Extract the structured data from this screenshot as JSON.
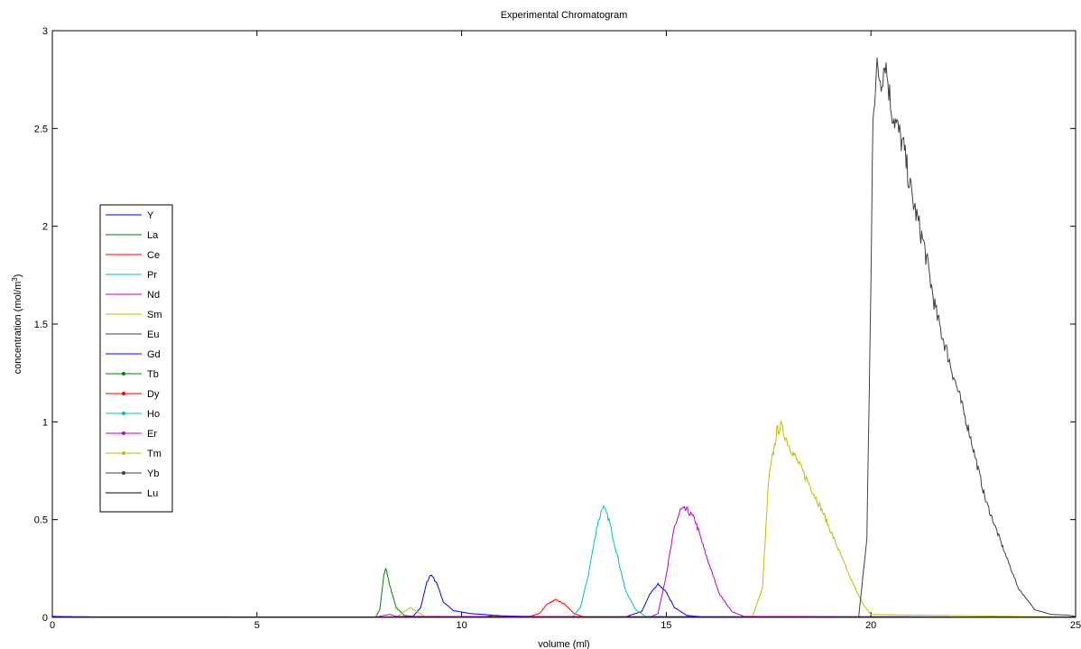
{
  "chart_data": {
    "type": "line",
    "title": "Experimental Chromatogram",
    "xlabel": "volume (ml)",
    "ylabel": "concentration (mol/m",
    "ylabel_superscript": "3",
    "ylabel_suffix": ")",
    "xlim": [
      0,
      25
    ],
    "ylim": [
      0,
      3
    ],
    "x_ticks": [
      0,
      5,
      10,
      15,
      20,
      25
    ],
    "y_ticks": [
      0,
      0.5,
      1,
      1.5,
      2,
      2.5,
      3
    ],
    "x_tick_labels": [
      "0",
      "5",
      "10",
      "15",
      "20",
      "25"
    ],
    "y_tick_labels": [
      "0",
      "0.5",
      "1",
      "1.5",
      "2",
      "2.5",
      "3"
    ],
    "grid": false,
    "legend_position": "left",
    "series": [
      {
        "name": "Y",
        "color": "#0000ff",
        "marker": false,
        "points": [
          [
            0,
            0.005
          ],
          [
            0.9,
            0.003
          ],
          [
            8.4,
            0.002
          ],
          [
            8.8,
            0.003
          ],
          [
            9.0,
            0.05
          ],
          [
            9.15,
            0.18
          ],
          [
            9.25,
            0.22
          ],
          [
            9.4,
            0.17
          ],
          [
            9.55,
            0.08
          ],
          [
            9.8,
            0.035
          ],
          [
            10.2,
            0.02
          ],
          [
            11,
            0.008
          ],
          [
            12,
            0.004
          ],
          [
            14.0,
            0.003
          ],
          [
            14.4,
            0.03
          ],
          [
            14.6,
            0.12
          ],
          [
            14.8,
            0.17
          ],
          [
            15.0,
            0.13
          ],
          [
            15.2,
            0.05
          ],
          [
            15.5,
            0.01
          ],
          [
            16,
            0.002
          ],
          [
            25,
            0.002
          ]
        ]
      },
      {
        "name": "La",
        "color": "#008000",
        "marker": false,
        "points": [
          [
            0,
            0.002
          ],
          [
            7.9,
            0.002
          ],
          [
            8.0,
            0.04
          ],
          [
            8.1,
            0.22
          ],
          [
            8.15,
            0.25
          ],
          [
            8.25,
            0.16
          ],
          [
            8.4,
            0.05
          ],
          [
            8.6,
            0.01
          ],
          [
            9,
            0.002
          ],
          [
            10.6,
            0.004
          ],
          [
            10.8,
            0.012
          ],
          [
            11.0,
            0.004
          ],
          [
            25,
            0.002
          ]
        ]
      },
      {
        "name": "Ce",
        "color": "#ff0000",
        "marker": false,
        "points": [
          [
            0,
            0.001
          ],
          [
            11.6,
            0.001
          ],
          [
            11.9,
            0.02
          ],
          [
            12.1,
            0.07
          ],
          [
            12.3,
            0.09
          ],
          [
            12.5,
            0.07
          ],
          [
            12.75,
            0.02
          ],
          [
            13.0,
            0.002
          ],
          [
            25,
            0.001
          ]
        ]
      },
      {
        "name": "Pr",
        "color": "#00bfbf",
        "marker": false,
        "points": [
          [
            0,
            0.001
          ],
          [
            12.7,
            0.001
          ],
          [
            12.9,
            0.05
          ],
          [
            13.1,
            0.22
          ],
          [
            13.3,
            0.46
          ],
          [
            13.45,
            0.57
          ],
          [
            13.6,
            0.5
          ],
          [
            13.8,
            0.32
          ],
          [
            14.0,
            0.14
          ],
          [
            14.25,
            0.04
          ],
          [
            14.5,
            0.005
          ],
          [
            25,
            0.001
          ]
        ]
      },
      {
        "name": "Nd",
        "color": "#bf00bf",
        "marker": false,
        "points": [
          [
            0,
            0.001
          ],
          [
            14.6,
            0.001
          ],
          [
            14.8,
            0.02
          ],
          [
            15.0,
            0.22
          ],
          [
            15.2,
            0.46
          ],
          [
            15.35,
            0.55
          ],
          [
            15.5,
            0.55
          ],
          [
            15.7,
            0.5
          ],
          [
            16.0,
            0.3
          ],
          [
            16.3,
            0.12
          ],
          [
            16.6,
            0.03
          ],
          [
            16.9,
            0.005
          ],
          [
            25,
            0.001
          ]
        ]
      },
      {
        "name": "Sm",
        "color": "#bfbf00",
        "marker": false,
        "points": [
          [
            0,
            0.001
          ],
          [
            8.4,
            0.001
          ],
          [
            8.6,
            0.03
          ],
          [
            8.75,
            0.05
          ],
          [
            8.9,
            0.03
          ],
          [
            9.1,
            0.005
          ],
          [
            17.1,
            0.002
          ],
          [
            17.35,
            0.15
          ],
          [
            17.5,
            0.7
          ],
          [
            17.7,
            0.95
          ],
          [
            17.8,
            0.98
          ],
          [
            18.0,
            0.88
          ],
          [
            18.4,
            0.72
          ],
          [
            18.8,
            0.55
          ],
          [
            19.2,
            0.35
          ],
          [
            19.5,
            0.2
          ],
          [
            19.8,
            0.07
          ],
          [
            20.0,
            0.015
          ],
          [
            25,
            0.001
          ]
        ]
      },
      {
        "name": "Eu",
        "color": "#404040",
        "marker": false,
        "points": [
          [
            0,
            0.001
          ],
          [
            19.7,
            0.002
          ],
          [
            19.9,
            0.4
          ],
          [
            20.0,
            1.7
          ],
          [
            20.05,
            2.6
          ],
          [
            20.15,
            2.8
          ],
          [
            20.25,
            2.75
          ],
          [
            20.35,
            2.85
          ],
          [
            20.5,
            2.6
          ],
          [
            20.8,
            2.4
          ],
          [
            21.0,
            2.15
          ],
          [
            21.3,
            1.9
          ],
          [
            21.6,
            1.55
          ],
          [
            22.0,
            1.25
          ],
          [
            22.4,
            0.95
          ],
          [
            22.8,
            0.6
          ],
          [
            23.2,
            0.37
          ],
          [
            23.6,
            0.15
          ],
          [
            24.0,
            0.04
          ],
          [
            24.4,
            0.015
          ],
          [
            24.8,
            0.012
          ],
          [
            25,
            0.005
          ]
        ]
      },
      {
        "name": "Gd",
        "color": "#0000ff",
        "marker": false,
        "points": [
          [
            0,
            0.001
          ],
          [
            25,
            0.001
          ]
        ]
      },
      {
        "name": "Tb",
        "color": "#008000",
        "marker": true,
        "points": [
          [
            0,
            0.001
          ],
          [
            25,
            0.001
          ]
        ]
      },
      {
        "name": "Dy",
        "color": "#ff0000",
        "marker": true,
        "points": [
          [
            0,
            0.001
          ],
          [
            25,
            0.001
          ]
        ]
      },
      {
        "name": "Ho",
        "color": "#00bfbf",
        "marker": true,
        "points": [
          [
            0,
            0.001
          ],
          [
            25,
            0.001
          ]
        ]
      },
      {
        "name": "Er",
        "color": "#bf00bf",
        "marker": true,
        "points": [
          [
            0,
            0.001
          ],
          [
            7.9,
            0.001
          ],
          [
            8.1,
            0.01
          ],
          [
            8.25,
            0.015
          ],
          [
            8.4,
            0.005
          ],
          [
            25,
            0.001
          ]
        ]
      },
      {
        "name": "Tm",
        "color": "#bfbf00",
        "marker": true,
        "points": [
          [
            0,
            0.001
          ],
          [
            25,
            0.001
          ]
        ]
      },
      {
        "name": "Yb",
        "color": "#404040",
        "marker": true,
        "points": [
          [
            0,
            0.001
          ],
          [
            25,
            0.001
          ]
        ]
      },
      {
        "name": "Lu",
        "color": "#000000",
        "marker": false,
        "points": [
          [
            0,
            0.001
          ],
          [
            25,
            0.001
          ]
        ]
      }
    ]
  }
}
